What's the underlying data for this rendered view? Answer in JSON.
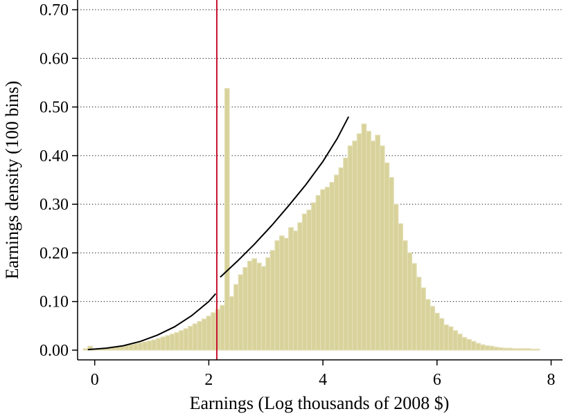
{
  "chart_data": {
    "type": "bar",
    "subtype": "histogram",
    "title": "",
    "xlabel": "Earnings (Log thousands of 2008 $)",
    "ylabel": "Earnings density (100 bins)",
    "xlim": [
      -0.3,
      8.2
    ],
    "ylim": [
      -0.02,
      0.72
    ],
    "x_ticks": [
      {
        "value": 0,
        "label": "0"
      },
      {
        "value": 2,
        "label": "2"
      },
      {
        "value": 4,
        "label": "4"
      },
      {
        "value": 6,
        "label": "6"
      },
      {
        "value": 8,
        "label": "8"
      }
    ],
    "y_ticks": [
      {
        "value": 0.0,
        "label": "0.00"
      },
      {
        "value": 0.1,
        "label": "0.10"
      },
      {
        "value": 0.2,
        "label": "0.20"
      },
      {
        "value": 0.3,
        "label": "0.30"
      },
      {
        "value": 0.4,
        "label": "0.40"
      },
      {
        "value": 0.5,
        "label": "0.50"
      },
      {
        "value": 0.6,
        "label": "0.60"
      },
      {
        "value": 0.7,
        "label": "0.70"
      }
    ],
    "grid": "horizontal dotted",
    "bar_color": "#d8d29b",
    "bin_start": -0.2,
    "bin_width": 0.08,
    "values": [
      0.003,
      0.008,
      0.002,
      0.003,
      0.004,
      0.005,
      0.006,
      0.007,
      0.008,
      0.01,
      0.011,
      0.013,
      0.015,
      0.017,
      0.019,
      0.021,
      0.024,
      0.027,
      0.03,
      0.033,
      0.036,
      0.04,
      0.044,
      0.049,
      0.054,
      0.059,
      0.064,
      0.07,
      0.077,
      0.084,
      0.092,
      0.538,
      0.11,
      0.135,
      0.155,
      0.17,
      0.183,
      0.188,
      0.179,
      0.172,
      0.19,
      0.205,
      0.225,
      0.235,
      0.23,
      0.252,
      0.245,
      0.262,
      0.28,
      0.288,
      0.303,
      0.318,
      0.33,
      0.335,
      0.345,
      0.36,
      0.375,
      0.395,
      0.42,
      0.43,
      0.445,
      0.465,
      0.45,
      0.43,
      0.442,
      0.42,
      0.385,
      0.355,
      0.3,
      0.26,
      0.225,
      0.2,
      0.178,
      0.15,
      0.128,
      0.104,
      0.09,
      0.076,
      0.065,
      0.052,
      0.048,
      0.04,
      0.033,
      0.026,
      0.022,
      0.018,
      0.014,
      0.011,
      0.009,
      0.008,
      0.006,
      0.005,
      0.004,
      0.004,
      0.003,
      0.003,
      0.003,
      0.003,
      0.002,
      0.002
    ],
    "fitted_curve_left": {
      "color": "#000000",
      "x": [
        -0.12,
        0.2,
        0.5,
        0.8,
        1.1,
        1.4,
        1.7,
        2.0,
        2.12
      ],
      "y": [
        0.001,
        0.004,
        0.009,
        0.018,
        0.031,
        0.048,
        0.071,
        0.1,
        0.116
      ]
    },
    "fitted_curve_right": {
      "color": "#000000",
      "x": [
        2.2,
        2.5,
        2.8,
        3.1,
        3.4,
        3.7,
        4.0,
        4.25,
        4.45
      ],
      "y": [
        0.15,
        0.183,
        0.218,
        0.256,
        0.297,
        0.34,
        0.388,
        0.435,
        0.48
      ]
    },
    "threshold_line": {
      "x": 2.14,
      "color": "#c8102e"
    }
  }
}
